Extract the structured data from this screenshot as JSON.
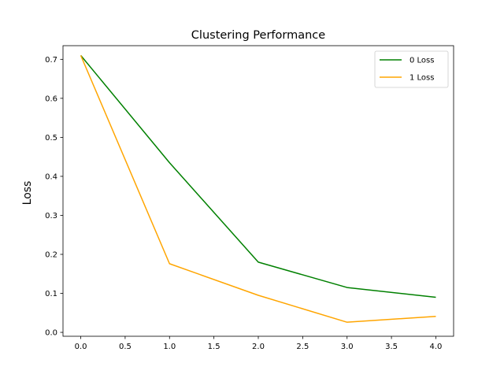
{
  "chart_data": {
    "type": "line",
    "title": "Clustering Performance",
    "xlabel": "",
    "ylabel": "Loss",
    "x": [
      0,
      1,
      2,
      3,
      4
    ],
    "xlim": [
      -0.2,
      4.2
    ],
    "ylim": [
      -0.01,
      0.735
    ],
    "xticks": [
      0.0,
      0.5,
      1.0,
      1.5,
      2.0,
      2.5,
      3.0,
      3.5,
      4.0
    ],
    "xtick_labels": [
      "0.0",
      "0.5",
      "1.0",
      "1.5",
      "2.0",
      "2.5",
      "3.0",
      "3.5",
      "4.0"
    ],
    "yticks": [
      0.0,
      0.1,
      0.2,
      0.3,
      0.4,
      0.5,
      0.6,
      0.7
    ],
    "ytick_labels": [
      "0.0",
      "0.1",
      "0.2",
      "0.3",
      "0.4",
      "0.5",
      "0.6",
      "0.7"
    ],
    "grid": false,
    "legend_position": "top-right",
    "series": [
      {
        "name": "0 Loss",
        "color": "#008000",
        "values": [
          0.71,
          0.435,
          0.18,
          0.115,
          0.09
        ]
      },
      {
        "name": "1 Loss",
        "color": "#ffa500",
        "values": [
          0.71,
          0.176,
          0.095,
          0.026,
          0.041
        ]
      }
    ]
  }
}
